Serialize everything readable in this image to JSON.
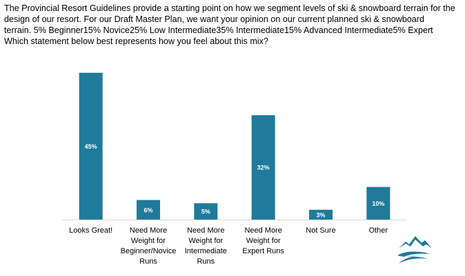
{
  "question": {
    "lines": [
      "The Provincial Resort Guidelines provide a starting point on how we segment levels of ski & snowboard terrain for the",
      "design of our resort. For our Draft Master Plan, we want your opinion on our current planned ski & snowboard",
      "terrain. 5%  Beginner15% Novice25% Low Intermediate35% Intermediate15% Advanced Intermediate5% Expert",
      "Which statement below best represents how you feel about this mix?"
    ]
  },
  "logo": {
    "icon": "mountain-logo-icon"
  },
  "colors": {
    "bar": "#1f7a9c",
    "label": "#ffffff",
    "axis": "#d9d9d9",
    "logo": "#1f7a9c"
  },
  "chart_data": {
    "type": "bar",
    "title": "",
    "xlabel": "",
    "ylabel": "",
    "ylim": [
      0,
      46
    ],
    "categories": [
      [
        "Looks Great!"
      ],
      [
        "Need More",
        "Weight for",
        "Beginner/Novice",
        "Runs"
      ],
      [
        "Need More",
        "Weight for",
        "Intermediate",
        "Runs"
      ],
      [
        "Need More",
        "Weight for",
        "Expert Runs"
      ],
      [
        "Not Sure"
      ],
      [
        "Other"
      ]
    ],
    "values": [
      45,
      6,
      5,
      32,
      3,
      10
    ],
    "value_labels": [
      "45%",
      "6%",
      "5%",
      "32%",
      "3%",
      "10%"
    ],
    "grid": false
  }
}
